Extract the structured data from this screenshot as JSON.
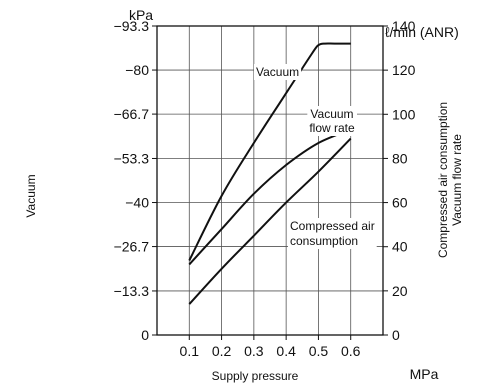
{
  "chart_data": {
    "type": "line",
    "xlabel": "Supply pressure",
    "xunit": "MPa",
    "x_ticks": [
      "0.1",
      "0.2",
      "0.3",
      "0.4",
      "0.5",
      "0.6"
    ],
    "x_ticks_values": [
      0.1,
      0.2,
      0.3,
      0.4,
      0.5,
      0.6
    ],
    "xlim": [
      0.0,
      0.7
    ],
    "grid": true,
    "left_axis": {
      "label": "Vacuum",
      "unit": "kPa",
      "ticks": [
        "0",
        "−13.3",
        "−26.7",
        "−40",
        "−53.3",
        "−66.7",
        "−80",
        "−93.3"
      ],
      "ticks_values": [
        0,
        -13.3,
        -26.7,
        -40,
        -53.3,
        -66.7,
        -80,
        -93.3
      ],
      "range": [
        0,
        -93.3
      ]
    },
    "right_axis": {
      "label_line1": "Compressed air consumption",
      "label_line2": "Vacuum flow rate",
      "unit": "ℓ/min (ANR)",
      "ticks": [
        "0",
        "20",
        "40",
        "60",
        "80",
        "100",
        "120",
        "140"
      ],
      "ticks_values": [
        0,
        20,
        40,
        60,
        80,
        100,
        120,
        140
      ],
      "range": [
        0,
        140
      ]
    },
    "series": [
      {
        "name": "Vacuum",
        "axis": "left",
        "x": [
          0.1,
          0.2,
          0.3,
          0.4,
          0.48,
          0.5,
          0.52,
          0.55,
          0.6
        ],
        "y": [
          -22.5,
          -42,
          -58,
          -73,
          -85,
          -87.5,
          -88,
          -88,
          -88
        ]
      },
      {
        "name": "Vacuum flow rate",
        "name_line1": "Vacuum",
        "name_line2": "flow rate",
        "axis": "right",
        "x": [
          0.1,
          0.2,
          0.3,
          0.4,
          0.5,
          0.6
        ],
        "y": [
          32,
          48,
          64,
          77,
          87,
          93
        ]
      },
      {
        "name": "Compressed air consumption",
        "name_line1": "Compressed air",
        "name_line2": "consumption",
        "axis": "right",
        "x": [
          0.1,
          0.2,
          0.3,
          0.4,
          0.5,
          0.6
        ],
        "y": [
          14,
          30,
          45,
          60,
          74,
          89
        ]
      }
    ]
  }
}
